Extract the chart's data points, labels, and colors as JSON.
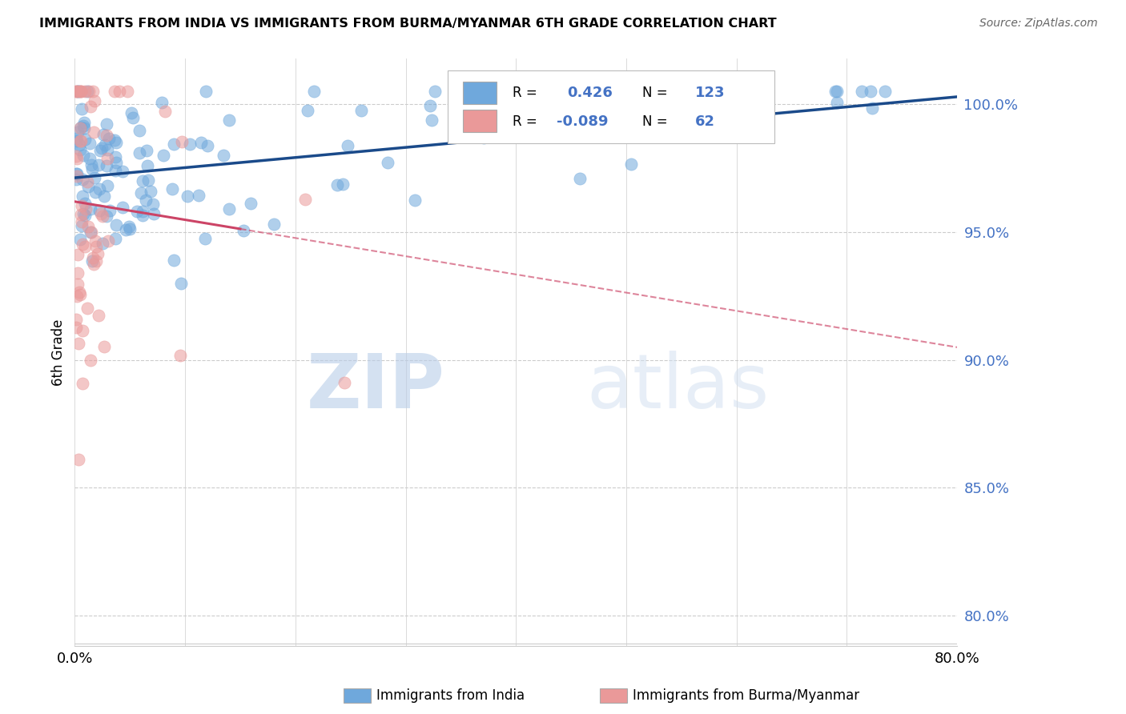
{
  "title": "IMMIGRANTS FROM INDIA VS IMMIGRANTS FROM BURMA/MYANMAR 6TH GRADE CORRELATION CHART",
  "source": "Source: ZipAtlas.com",
  "ylabel": "6th Grade",
  "xlim": [
    0.0,
    0.8
  ],
  "ylim": [
    0.788,
    1.018
  ],
  "x_ticks": [
    0.0,
    0.1,
    0.2,
    0.3,
    0.4,
    0.5,
    0.6,
    0.7,
    0.8
  ],
  "x_tick_labels": [
    "0.0%",
    "",
    "",
    "",
    "",
    "",
    "",
    "",
    "80.0%"
  ],
  "y_ticks": [
    0.8,
    0.85,
    0.9,
    0.95,
    1.0
  ],
  "india_R": 0.426,
  "india_N": 123,
  "burma_R": -0.089,
  "burma_N": 62,
  "india_color": "#6fa8dc",
  "burma_color": "#ea9999",
  "india_line_color": "#1a4a8a",
  "burma_line_color": "#cc4466",
  "legend_label_india": "Immigrants from India",
  "legend_label_burma": "Immigrants from Burma/Myanmar",
  "watermark_zip": "ZIP",
  "watermark_atlas": "atlas",
  "background_color": "#ffffff",
  "grid_color": "#cccccc",
  "axis_color": "#4472c4",
  "india_seed": 42,
  "burma_seed": 7
}
